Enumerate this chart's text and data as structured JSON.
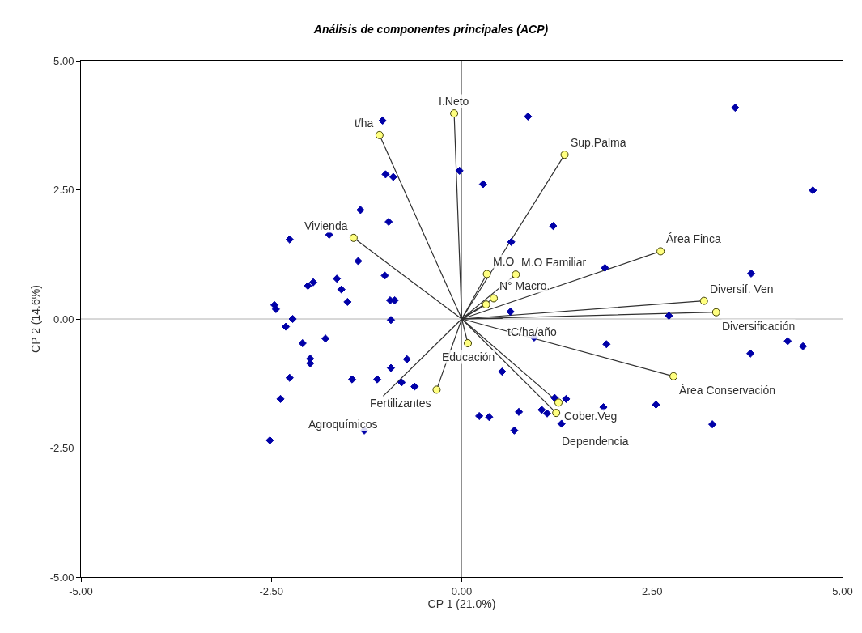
{
  "chart_data": {
    "type": "scatter",
    "title": "Análisis de componentes principales (ACP)",
    "xlabel": "CP 1 (21.0%)",
    "ylabel": "CP 2 (14.6%)",
    "xlim": [
      -5,
      5
    ],
    "ylim": [
      -5,
      5
    ],
    "xticks": [
      {
        "value": -5,
        "label": "-5.00"
      },
      {
        "value": -2.5,
        "label": "-2.50"
      },
      {
        "value": 0,
        "label": "0.00"
      },
      {
        "value": 2.5,
        "label": "2.50"
      },
      {
        "value": 5,
        "label": "5.00"
      }
    ],
    "yticks": [
      {
        "value": -5,
        "label": "-5.00"
      },
      {
        "value": -2.5,
        "label": "-2.50"
      },
      {
        "value": 0,
        "label": "0.00"
      },
      {
        "value": 2.5,
        "label": "2.50"
      },
      {
        "value": 5,
        "label": "5.00"
      }
    ],
    "grid": false,
    "ref_lines": [
      {
        "axis": "x",
        "value": 0,
        "color": "#909090"
      },
      {
        "axis": "y",
        "value": 0,
        "color": "#b0b0b0"
      }
    ],
    "series": [
      {
        "type": "line",
        "color": "#303030",
        "marker": "none",
        "x": [
          0,
          -0.1,
          null,
          0,
          -1.08,
          null,
          0,
          1.35,
          null,
          0,
          -1.42,
          null,
          0,
          2.61,
          null,
          0,
          0.33,
          null,
          0,
          0.71,
          null,
          0,
          0.42,
          null,
          0,
          0.32,
          null,
          0,
          0.53,
          null,
          0,
          3.18,
          null,
          0,
          3.34,
          null,
          0,
          2.78,
          null,
          0,
          0.08,
          null,
          0,
          1.27,
          null,
          0,
          1.24,
          null,
          0,
          -0.33,
          null,
          0,
          -1.03
        ],
        "values": [
          0,
          3.98,
          null,
          0,
          3.56,
          null,
          0,
          3.18,
          null,
          0,
          1.57,
          null,
          0,
          1.31,
          null,
          0,
          0.87,
          null,
          0,
          0.86,
          null,
          0,
          0.4,
          null,
          0,
          0.28,
          null,
          0,
          0.01,
          null,
          0,
          0.35,
          null,
          0,
          0.13,
          null,
          0,
          -1.11,
          null,
          0,
          -0.47,
          null,
          0,
          -1.62,
          null,
          0,
          -1.82,
          null,
          0,
          -1.37,
          null,
          0,
          -1.49
        ]
      },
      {
        "color": "#0000a8",
        "marker": "diamond",
        "x": [
          -1.04,
          -0.03,
          -1.0,
          -0.9,
          -1.33,
          -0.96,
          -2.26,
          -1.74,
          -1.36,
          -1.01,
          -2.02,
          -1.95,
          -1.64,
          -1.58,
          -1.5,
          -0.94,
          -0.88,
          -2.46,
          -2.44,
          -2.22,
          -0.93,
          -2.31,
          -1.79,
          -2.09,
          -1.99,
          -1.99,
          -0.72,
          -0.93,
          -2.26,
          -1.44,
          -1.11,
          -0.79,
          -0.62,
          -2.38,
          -1.28,
          -2.52,
          0.87,
          3.59,
          0.28,
          4.61,
          1.2,
          0.65,
          1.88,
          3.8,
          0.64,
          2.72,
          0.95,
          1.9,
          4.28,
          4.48,
          3.79,
          0.53,
          1.22,
          1.37,
          2.55,
          1.86,
          0.23,
          0.36,
          0.75,
          1.05,
          1.12,
          1.31,
          3.29,
          0.69
        ],
        "values": [
          3.84,
          2.87,
          2.8,
          2.75,
          2.11,
          1.88,
          1.54,
          1.63,
          1.12,
          0.84,
          0.64,
          0.71,
          0.78,
          0.57,
          0.33,
          0.36,
          0.36,
          0.27,
          0.19,
          0.0,
          -0.02,
          -0.15,
          -0.38,
          -0.47,
          -0.77,
          -0.86,
          -0.78,
          -0.95,
          -1.14,
          -1.17,
          -1.17,
          -1.23,
          -1.31,
          -1.55,
          -2.16,
          -2.35,
          3.92,
          4.09,
          2.61,
          2.49,
          1.8,
          1.49,
          0.99,
          0.88,
          0.14,
          0.06,
          -0.36,
          -0.49,
          -0.43,
          -0.53,
          -0.67,
          -1.02,
          -1.53,
          -1.55,
          -1.66,
          -1.71,
          -1.88,
          -1.9,
          -1.8,
          -1.76,
          -1.83,
          -2.03,
          -2.04,
          -2.16
        ]
      },
      {
        "color": "#ffff80",
        "marker": "circle",
        "x": [
          -0.1,
          -1.08,
          1.35,
          -1.42,
          2.61,
          0.33,
          0.71,
          0.42,
          0.32,
          3.18,
          3.34,
          2.78,
          0.08,
          1.27,
          1.24,
          -0.33
        ],
        "values": [
          3.98,
          3.56,
          3.18,
          1.57,
          1.31,
          0.87,
          0.86,
          0.4,
          0.28,
          0.35,
          0.13,
          -1.11,
          -0.47,
          -1.62,
          -1.82,
          -1.37
        ]
      }
    ],
    "annotations": [
      {
        "text": "I.Neto",
        "x": -0.1,
        "y": 3.98
      },
      {
        "text": "t/ha",
        "x": -1.08,
        "y": 3.56
      },
      {
        "text": "Sup.Palma",
        "x": 1.35,
        "y": 3.18
      },
      {
        "text": "Vivienda",
        "x": -1.42,
        "y": 1.57
      },
      {
        "text": "Área Finca",
        "x": 2.61,
        "y": 1.31
      },
      {
        "text": "M.O",
        "x": 0.33,
        "y": 0.87
      },
      {
        "text": "M.O Familiar",
        "x": 0.71,
        "y": 0.86
      },
      {
        "text": "N° Macro.",
        "x": 0.42,
        "y": 0.4
      },
      {
        "text": "Diversif. Ven",
        "x": 3.18,
        "y": 0.35
      },
      {
        "text": "Diversificación",
        "x": 3.34,
        "y": 0.13
      },
      {
        "text": "tC/ha/año",
        "x": 0.53,
        "y": 0.01
      },
      {
        "text": "Educación",
        "x": 0.08,
        "y": -0.47
      },
      {
        "text": "Cober.Veg",
        "x": 1.27,
        "y": -1.62
      },
      {
        "text": "Área Conservación",
        "x": 2.78,
        "y": -1.11
      },
      {
        "text": "Dependencia",
        "x": 1.24,
        "y": -1.82
      },
      {
        "text": "Fertilizantes",
        "x": -0.33,
        "y": -1.37
      },
      {
        "text": "Agroquímicos",
        "x": -1.03,
        "y": -1.49
      }
    ]
  }
}
